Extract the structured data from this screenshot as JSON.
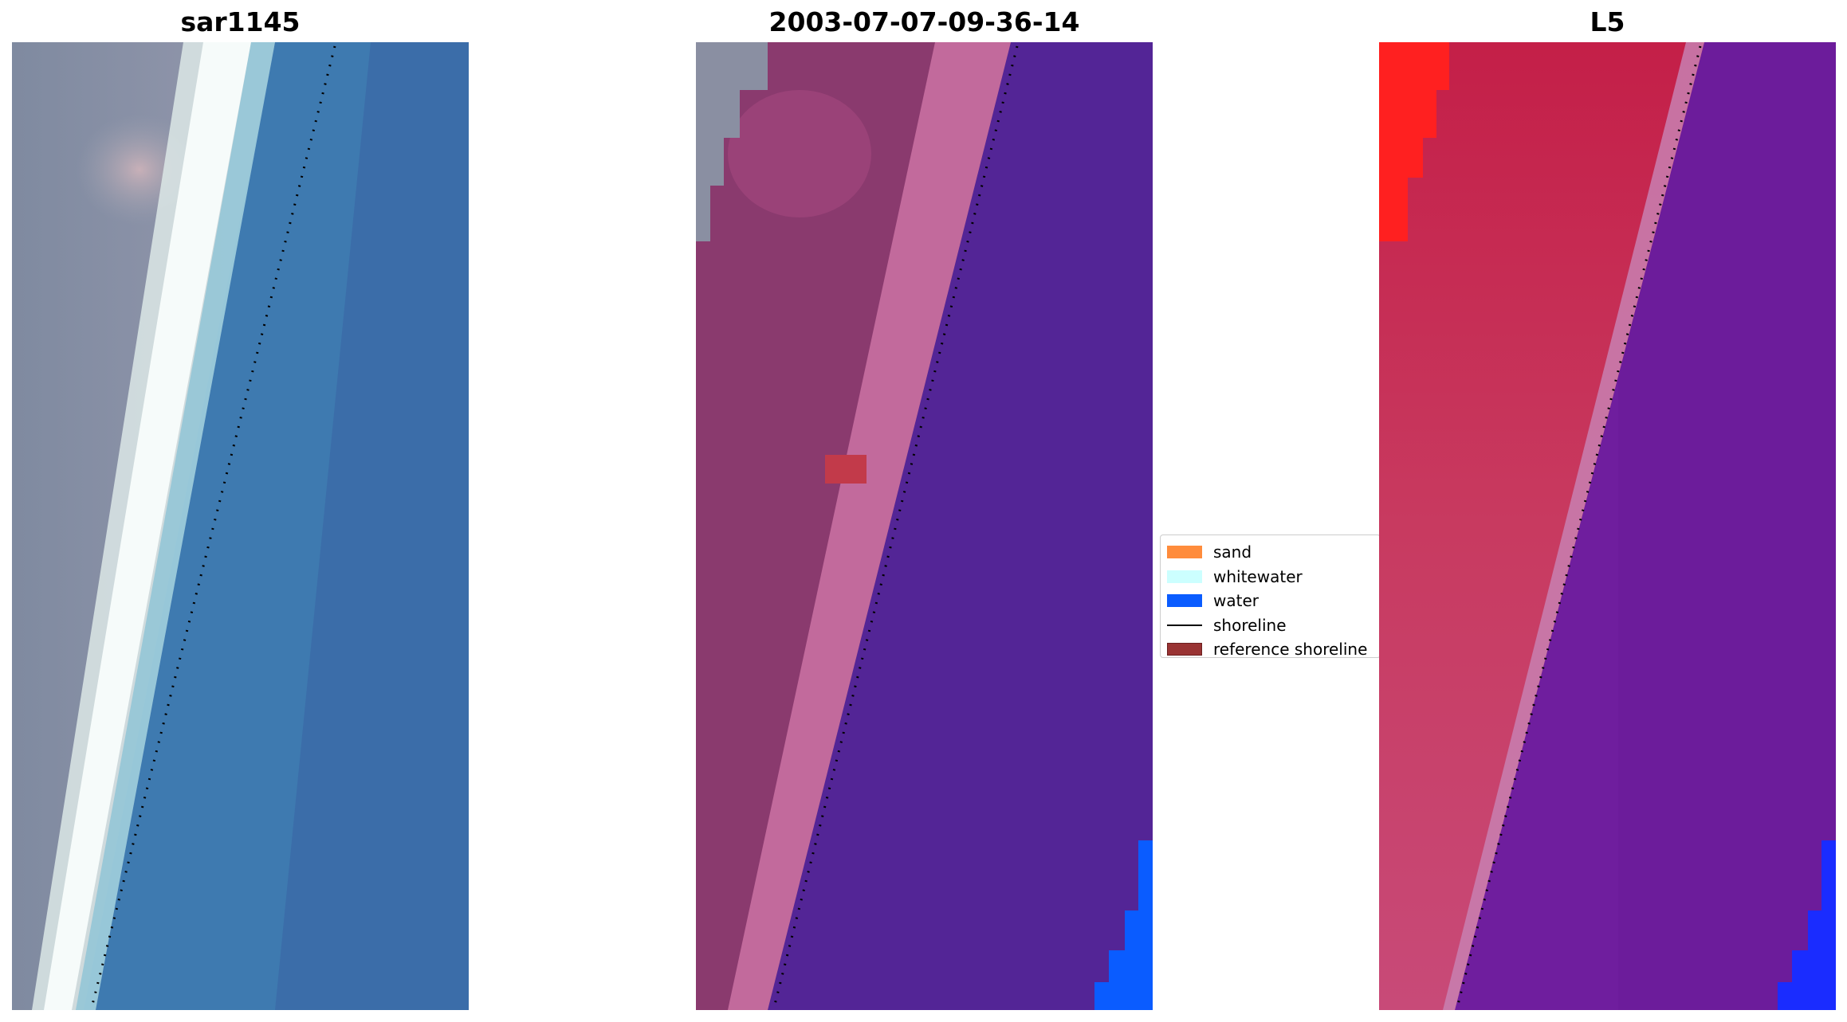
{
  "panels": [
    {
      "title": "sar1145"
    },
    {
      "title": "2003-07-07-09-36-14"
    },
    {
      "title": "L5"
    }
  ],
  "legend": [
    {
      "label": "sand",
      "color": "#ff8c3c"
    },
    {
      "label": "whitewater",
      "color": "#ccffff"
    },
    {
      "label": "water",
      "color": "#0a5cff"
    },
    {
      "label": "shoreline",
      "color": "#000000",
      "kind": "line"
    },
    {
      "label": "reference shoreline",
      "color": "#993333",
      "border": "#6b1f1f"
    }
  ],
  "colors": {
    "rgb_land": "#8a8fa6",
    "rgb_whitewater": "#f0f7f5",
    "rgb_water": "#3e7ab0",
    "class_land": "#8a3a6e",
    "class_beach": "#c26a9c",
    "class_water": "#532596",
    "class_water_blue": "#0a5cff",
    "class_grey": "#8a8fa2",
    "mndwi_land": "#c41f48",
    "mndwi_water": "#6f1e9e",
    "mndwi_red": "#ff2020",
    "mndwi_blue": "#1a2cff",
    "shoreline": "#000000"
  }
}
